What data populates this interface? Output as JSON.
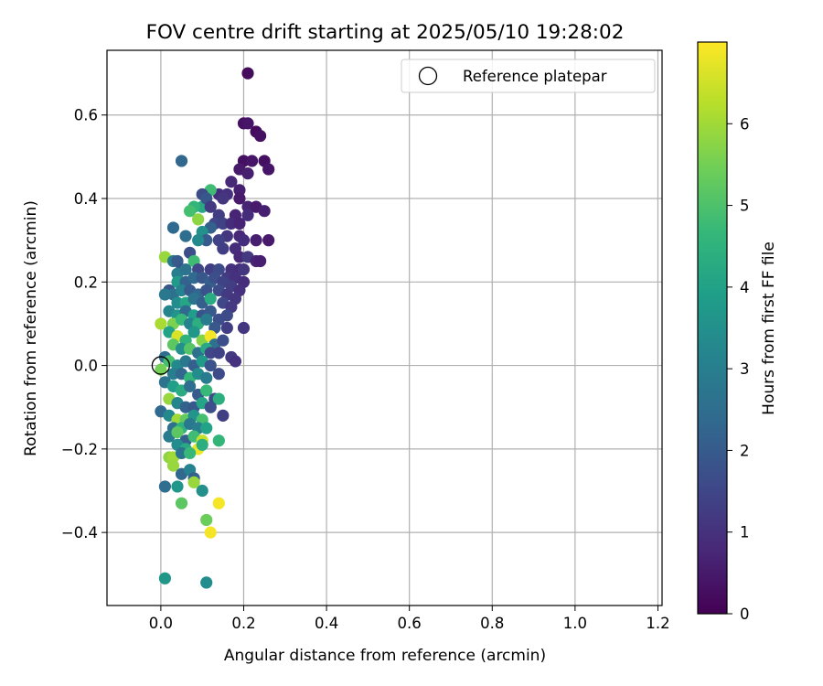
{
  "chart_data": {
    "type": "scatter",
    "title": "FOV centre drift starting at 2025/05/10 19:28:02",
    "xlabel": "Angular distance from reference (arcmin)",
    "ylabel": "Rotation from reference (arcmin)",
    "xlim": [
      -0.13,
      1.21
    ],
    "ylim": [
      -0.575,
      0.755
    ],
    "x_ticks": [
      0.0,
      0.2,
      0.4,
      0.6,
      0.8,
      1.0,
      1.2
    ],
    "x_tick_labels": [
      "0.0",
      "0.2",
      "0.4",
      "0.6",
      "0.8",
      "1.0",
      "1.2"
    ],
    "y_ticks": [
      -0.4,
      -0.2,
      0.0,
      0.2,
      0.4,
      0.6
    ],
    "y_tick_labels": [
      "−0.4",
      "−0.2",
      "0.0",
      "0.2",
      "0.4",
      "0.6"
    ],
    "grid": true,
    "legend": {
      "placement": "top-right",
      "entries": [
        {
          "label": "Reference platepar",
          "marker": "open-circle"
        }
      ]
    },
    "reference_point": {
      "x": 0.0,
      "y": 0.0
    },
    "colorbar": {
      "label": "Hours from first FF file",
      "colormap": "viridis",
      "range": [
        0,
        7
      ],
      "ticks": [
        0,
        1,
        2,
        3,
        4,
        5,
        6
      ],
      "tick_labels": [
        "0",
        "1",
        "2",
        "3",
        "4",
        "5",
        "6"
      ]
    },
    "colormap_stops": [
      "#440154",
      "#482878",
      "#3e4989",
      "#31688e",
      "#26828e",
      "#1f9e89",
      "#35b779",
      "#6ece58",
      "#b5de2b",
      "#fde725"
    ],
    "points_xyc": [
      [
        0.21,
        0.7,
        0.2
      ],
      [
        0.2,
        0.58,
        0.3
      ],
      [
        0.21,
        0.58,
        0.4
      ],
      [
        0.23,
        0.56,
        0.2
      ],
      [
        0.24,
        0.55,
        0.3
      ],
      [
        0.05,
        0.49,
        2.3
      ],
      [
        0.2,
        0.49,
        0.3
      ],
      [
        0.22,
        0.49,
        0.4
      ],
      [
        0.25,
        0.49,
        0.3
      ],
      [
        0.19,
        0.47,
        0.5
      ],
      [
        0.26,
        0.47,
        0.4
      ],
      [
        0.21,
        0.46,
        0.6
      ],
      [
        0.17,
        0.44,
        0.8
      ],
      [
        0.19,
        0.42,
        0.6
      ],
      [
        0.14,
        0.41,
        0.9
      ],
      [
        0.16,
        0.41,
        1.0
      ],
      [
        0.12,
        0.42,
        4.8
      ],
      [
        0.1,
        0.41,
        1.6
      ],
      [
        0.1,
        0.38,
        4.2
      ],
      [
        0.11,
        0.4,
        1.9
      ],
      [
        0.08,
        0.38,
        4.6
      ],
      [
        0.07,
        0.37,
        4.9
      ],
      [
        0.12,
        0.38,
        1.2
      ],
      [
        0.15,
        0.4,
        1.1
      ],
      [
        0.19,
        0.4,
        0.5
      ],
      [
        0.21,
        0.38,
        0.7
      ],
      [
        0.23,
        0.38,
        0.5
      ],
      [
        0.21,
        0.36,
        0.9
      ],
      [
        0.25,
        0.37,
        0.6
      ],
      [
        0.18,
        0.36,
        0.7
      ],
      [
        0.14,
        0.36,
        1.3
      ],
      [
        0.13,
        0.34,
        1.5
      ],
      [
        0.12,
        0.33,
        2.2
      ],
      [
        0.09,
        0.35,
        5.8
      ],
      [
        0.03,
        0.33,
        2.4
      ],
      [
        0.06,
        0.31,
        2.5
      ],
      [
        0.1,
        0.32,
        3.5
      ],
      [
        0.15,
        0.34,
        1.4
      ],
      [
        0.17,
        0.34,
        0.9
      ],
      [
        0.19,
        0.34,
        0.7
      ],
      [
        0.16,
        0.31,
        1.1
      ],
      [
        0.19,
        0.31,
        0.8
      ],
      [
        0.2,
        0.3,
        0.9
      ],
      [
        0.23,
        0.3,
        0.6
      ],
      [
        0.26,
        0.3,
        0.5
      ],
      [
        0.14,
        0.3,
        1.4
      ],
      [
        0.11,
        0.3,
        2.0
      ],
      [
        0.09,
        0.3,
        3.3
      ],
      [
        0.15,
        0.28,
        1.3
      ],
      [
        0.18,
        0.28,
        0.9
      ],
      [
        0.19,
        0.26,
        0.8
      ],
      [
        0.21,
        0.26,
        1.2
      ],
      [
        0.23,
        0.25,
        0.7
      ],
      [
        0.24,
        0.25,
        0.6
      ],
      [
        0.01,
        0.26,
        5.9
      ],
      [
        0.03,
        0.25,
        2.9
      ],
      [
        0.04,
        0.25,
        2.0
      ],
      [
        0.07,
        0.27,
        1.7
      ],
      [
        0.08,
        0.25,
        4.8
      ],
      [
        0.05,
        0.23,
        1.8
      ],
      [
        0.04,
        0.22,
        3.0
      ],
      [
        0.06,
        0.23,
        2.7
      ],
      [
        0.09,
        0.23,
        1.5
      ],
      [
        0.12,
        0.23,
        1.3
      ],
      [
        0.14,
        0.23,
        1.6
      ],
      [
        0.17,
        0.23,
        1.0
      ],
      [
        0.19,
        0.23,
        0.9
      ],
      [
        0.2,
        0.23,
        1.1
      ],
      [
        0.16,
        0.21,
        1.2
      ],
      [
        0.18,
        0.21,
        1.0
      ],
      [
        0.2,
        0.2,
        0.9
      ],
      [
        0.04,
        0.2,
        3.8
      ],
      [
        0.06,
        0.2,
        2.2
      ],
      [
        0.08,
        0.21,
        2.4
      ],
      [
        0.1,
        0.21,
        1.9
      ],
      [
        0.12,
        0.2,
        2.1
      ],
      [
        0.13,
        0.21,
        1.7
      ],
      [
        0.15,
        0.2,
        1.4
      ],
      [
        0.17,
        0.19,
        1.3
      ],
      [
        0.19,
        0.18,
        1.0
      ],
      [
        0.02,
        0.18,
        1.9
      ],
      [
        0.03,
        0.17,
        2.6
      ],
      [
        0.05,
        0.18,
        3.1
      ],
      [
        0.07,
        0.18,
        2.0
      ],
      [
        0.09,
        0.17,
        2.3
      ],
      [
        0.11,
        0.18,
        1.8
      ],
      [
        0.14,
        0.18,
        1.6
      ],
      [
        0.16,
        0.17,
        1.2
      ],
      [
        0.18,
        0.16,
        1.1
      ],
      [
        0.01,
        0.17,
        2.8
      ],
      [
        0.04,
        0.15,
        3.4
      ],
      [
        0.06,
        0.15,
        4.1
      ],
      [
        0.08,
        0.16,
        2.7
      ],
      [
        0.1,
        0.15,
        2.1
      ],
      [
        0.12,
        0.16,
        4.3
      ],
      [
        0.15,
        0.15,
        1.5
      ],
      [
        0.17,
        0.14,
        1.2
      ],
      [
        0.02,
        0.13,
        3.2
      ],
      [
        0.04,
        0.12,
        3.6
      ],
      [
        0.06,
        0.13,
        2.4
      ],
      [
        0.08,
        0.12,
        3.9
      ],
      [
        0.1,
        0.12,
        1.8
      ],
      [
        0.12,
        0.13,
        2.0
      ],
      [
        0.14,
        0.11,
        1.7
      ],
      [
        0.16,
        0.12,
        1.6
      ],
      [
        0.0,
        0.1,
        6.1
      ],
      [
        0.03,
        0.1,
        5.6
      ],
      [
        0.05,
        0.11,
        4.7
      ],
      [
        0.07,
        0.1,
        3.1
      ],
      [
        0.09,
        0.1,
        4.4
      ],
      [
        0.11,
        0.11,
        2.9
      ],
      [
        0.13,
        0.09,
        1.9
      ],
      [
        0.16,
        0.09,
        1.3
      ],
      [
        0.2,
        0.09,
        1.1
      ],
      [
        0.02,
        0.08,
        4.0
      ],
      [
        0.04,
        0.07,
        6.6
      ],
      [
        0.06,
        0.06,
        4.5
      ],
      [
        0.08,
        0.08,
        3.7
      ],
      [
        0.1,
        0.06,
        5.7
      ],
      [
        0.12,
        0.07,
        6.9
      ],
      [
        0.13,
        0.05,
        2.6
      ],
      [
        0.15,
        0.06,
        1.7
      ],
      [
        0.03,
        0.05,
        5.2
      ],
      [
        0.05,
        0.04,
        3.5
      ],
      [
        0.07,
        0.04,
        5.1
      ],
      [
        0.09,
        0.03,
        2.6
      ],
      [
        0.11,
        0.04,
        4.2
      ],
      [
        0.12,
        0.03,
        1.5
      ],
      [
        0.14,
        0.03,
        1.4
      ],
      [
        0.17,
        0.02,
        1.2
      ],
      [
        0.18,
        0.01,
        1.0
      ],
      [
        0.01,
        0.02,
        2.5
      ],
      [
        0.02,
        0.01,
        4.9
      ],
      [
        0.04,
        0.0,
        3.3
      ],
      [
        0.06,
        0.01,
        2.8
      ],
      [
        0.08,
        0.0,
        2.1
      ],
      [
        0.1,
        0.01,
        3.8
      ],
      [
        0.12,
        0.0,
        1.8
      ],
      [
        0.0,
        -0.01,
        5.5
      ],
      [
        0.03,
        -0.02,
        3.0
      ],
      [
        0.05,
        -0.02,
        2.3
      ],
      [
        0.07,
        -0.03,
        4.6
      ],
      [
        0.09,
        -0.02,
        3.4
      ],
      [
        0.11,
        -0.03,
        2.9
      ],
      [
        0.14,
        -0.02,
        1.6
      ],
      [
        0.01,
        -0.04,
        2.7
      ],
      [
        0.03,
        -0.05,
        3.9
      ],
      [
        0.05,
        -0.06,
        4.3
      ],
      [
        0.07,
        -0.05,
        2.5
      ],
      [
        0.09,
        -0.07,
        2.0
      ],
      [
        0.11,
        -0.06,
        4.7
      ],
      [
        0.13,
        -0.08,
        1.6
      ],
      [
        0.14,
        -0.08,
        4.4
      ],
      [
        0.02,
        -0.08,
        5.9
      ],
      [
        0.04,
        -0.09,
        3.2
      ],
      [
        0.06,
        -0.1,
        2.2
      ],
      [
        0.08,
        -0.1,
        1.9
      ],
      [
        0.1,
        -0.09,
        4.1
      ],
      [
        0.12,
        -0.1,
        1.7
      ],
      [
        0.0,
        -0.11,
        2.4
      ],
      [
        0.02,
        -0.12,
        3.3
      ],
      [
        0.04,
        -0.13,
        6.0
      ],
      [
        0.06,
        -0.13,
        5.3
      ],
      [
        0.08,
        -0.12,
        3.6
      ],
      [
        0.1,
        -0.13,
        4.9
      ],
      [
        0.15,
        -0.12,
        1.3
      ],
      [
        0.03,
        -0.15,
        2.6
      ],
      [
        0.05,
        -0.15,
        4.5
      ],
      [
        0.07,
        -0.14,
        2.8
      ],
      [
        0.09,
        -0.15,
        3.0
      ],
      [
        0.11,
        -0.15,
        4.0
      ],
      [
        0.02,
        -0.17,
        2.9
      ],
      [
        0.04,
        -0.16,
        5.2
      ],
      [
        0.06,
        -0.18,
        2.1
      ],
      [
        0.08,
        -0.17,
        4.8
      ],
      [
        0.1,
        -0.18,
        6.4
      ],
      [
        0.14,
        -0.18,
        4.6
      ],
      [
        0.04,
        -0.19,
        3.4
      ],
      [
        0.06,
        -0.2,
        4.2
      ],
      [
        0.09,
        -0.2,
        6.8
      ],
      [
        0.1,
        -0.19,
        4.4
      ],
      [
        0.02,
        -0.22,
        5.8
      ],
      [
        0.03,
        -0.22,
        6.0
      ],
      [
        0.05,
        -0.21,
        2.7
      ],
      [
        0.07,
        -0.21,
        4.7
      ],
      [
        0.03,
        -0.24,
        5.9
      ],
      [
        0.05,
        -0.26,
        2.3
      ],
      [
        0.07,
        -0.25,
        3.1
      ],
      [
        0.08,
        -0.27,
        2.2
      ],
      [
        0.08,
        -0.28,
        5.9
      ],
      [
        0.01,
        -0.29,
        2.5
      ],
      [
        0.04,
        -0.29,
        3.7
      ],
      [
        0.1,
        -0.3,
        3.5
      ],
      [
        0.05,
        -0.33,
        5.2
      ],
      [
        0.14,
        -0.33,
        6.9
      ],
      [
        0.11,
        -0.37,
        5.4
      ],
      [
        0.12,
        -0.4,
        6.9
      ],
      [
        0.01,
        -0.51,
        3.7
      ],
      [
        0.11,
        -0.52,
        3.4
      ]
    ]
  }
}
